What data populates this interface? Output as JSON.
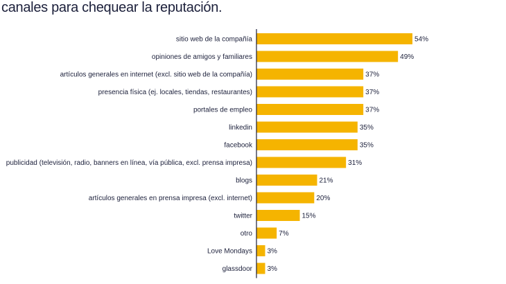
{
  "chart_data": {
    "type": "bar",
    "orientation": "horizontal",
    "title": "canales para chequear la reputación.",
    "categories": [
      "sitio web de la compañía",
      "opiniones de amigos y familiares",
      "artículos generales en internet (excl. sitio web de la compañía)",
      "presencia física (ej. locales, tiendas, restaurantes)",
      "portales de empleo",
      "linkedin",
      "facebook",
      "publicidad (televisión, radio, banners en línea, vía pública, excl. prensa impresa)",
      "blogs",
      "artículos generales en prensa impresa (excl. internet)",
      "twitter",
      "otro",
      "Love Mondays",
      "glassdoor"
    ],
    "values": [
      54,
      49,
      37,
      37,
      37,
      35,
      35,
      31,
      21,
      20,
      15,
      7,
      3,
      3
    ],
    "value_labels": [
      "54%",
      "49%",
      "37%",
      "37%",
      "37%",
      "35%",
      "35%",
      "31%",
      "21%",
      "20%",
      "15%",
      "7%",
      "3%",
      "3%"
    ],
    "xlim": [
      0,
      54
    ],
    "grid": false,
    "legend": "none",
    "bar_color": "#f5b400",
    "axis_color": "#1b1f3a"
  }
}
